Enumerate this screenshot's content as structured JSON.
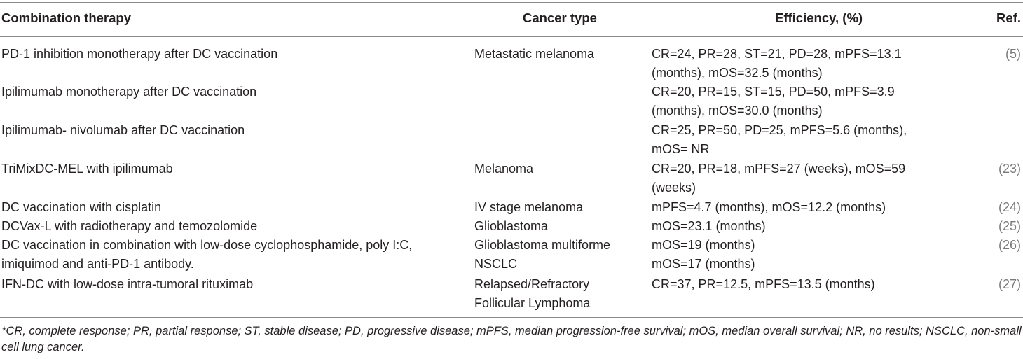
{
  "table": {
    "headers": {
      "therapy": "Combination therapy",
      "cancer": "Cancer type",
      "efficiency": "Efficiency, (%)",
      "ref": "Ref."
    },
    "rows": [
      {
        "therapy": [
          "PD-1 inhibition monotherapy after DC vaccination"
        ],
        "cancer": [
          "Metastatic melanoma"
        ],
        "efficiency": [
          "CR=24, PR=28, ST=21, PD=28, mPFS=13.1",
          "(months), mOS=32.5 (months)"
        ],
        "ref": "(5)"
      },
      {
        "therapy": [
          "Ipilimumab monotherapy after DC vaccination"
        ],
        "cancer": [],
        "efficiency": [
          "CR=20, PR=15, ST=15, PD=50, mPFS=3.9",
          "(months), mOS=30.0 (months)"
        ],
        "ref": ""
      },
      {
        "therapy": [
          "Ipilimumab- nivolumab after DC vaccination"
        ],
        "cancer": [],
        "efficiency": [
          "CR=25, PR=50, PD=25, mPFS=5.6 (months),",
          "mOS= NR"
        ],
        "ref": ""
      },
      {
        "therapy": [
          "TriMixDC-MEL with ipilimumab"
        ],
        "cancer": [
          "Melanoma"
        ],
        "efficiency": [
          "CR=20, PR=18, mPFS=27 (weeks), mOS=59",
          "(weeks)"
        ],
        "ref": "(23)"
      },
      {
        "therapy": [
          "DC vaccination with cisplatin"
        ],
        "cancer": [
          "IV stage melanoma"
        ],
        "efficiency": [
          "mPFS=4.7 (months), mOS=12.2 (months)"
        ],
        "ref": "(24)"
      },
      {
        "therapy": [
          "DCVax-L with radiotherapy and temozolomide"
        ],
        "cancer": [
          "Glioblastoma"
        ],
        "efficiency": [
          "mOS=23.1 (months)"
        ],
        "ref": "(25)"
      },
      {
        "therapy": [
          "DC vaccination in combination with low-dose cyclophosphamide, poly I:C,",
          "imiquimod and anti-PD-1 antibody."
        ],
        "cancer": [
          "Glioblastoma multiforme",
          "NSCLC"
        ],
        "efficiency": [
          "mOS=19 (months)",
          "mOS=17 (months)"
        ],
        "ref": "(26)"
      },
      {
        "therapy": [
          "IFN-DC with low-dose intra-tumoral rituximab"
        ],
        "cancer": [
          "Relapsed/Refractory",
          "Follicular Lymphoma"
        ],
        "efficiency": [
          "CR=37, PR=12.5, mPFS=13.5 (months)"
        ],
        "ref": "(27)"
      }
    ]
  },
  "footnote": "*CR, complete response; PR, partial response; ST, stable disease; PD, progressive disease; mPFS, median progression-free survival; mOS, median overall survival; NR, no results; NSCLC, non-small cell lung cancer."
}
